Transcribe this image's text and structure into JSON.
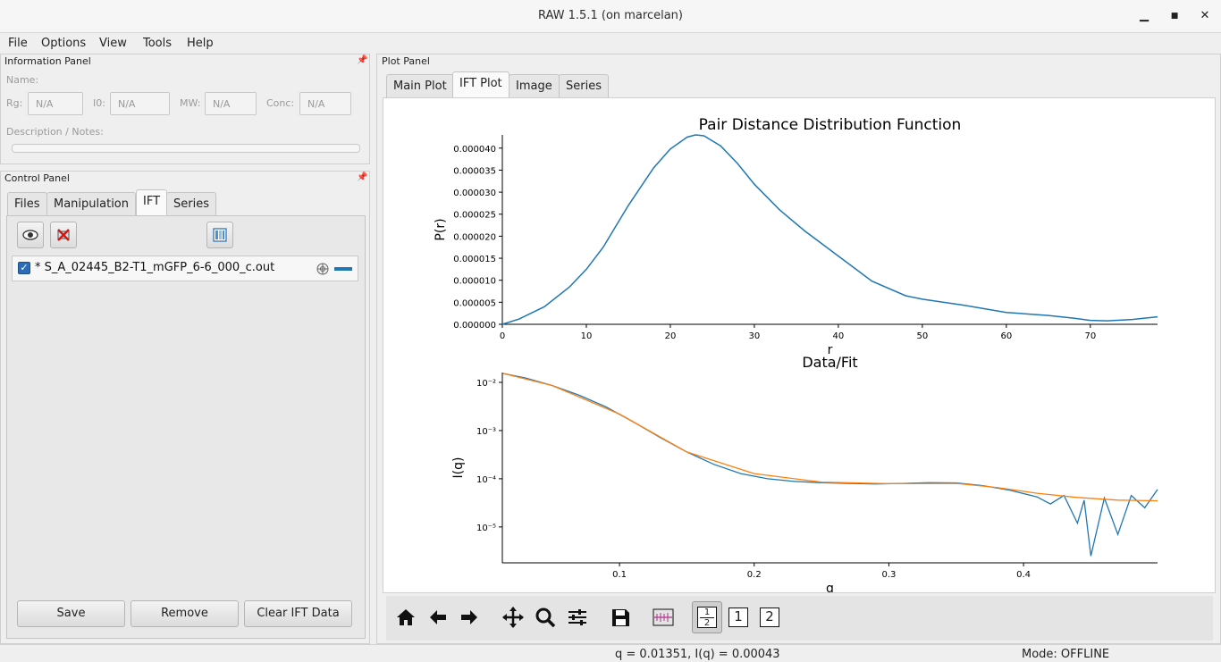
{
  "window": {
    "title": "RAW 1.5.1 (on marcelan)",
    "minimize_glyph": "▁",
    "maximize_glyph": "■",
    "close_glyph": "✕"
  },
  "menu": [
    "File",
    "Options",
    "View",
    "Tools",
    "Help"
  ],
  "info_panel": {
    "title": "Information Panel",
    "name_label": "Name:",
    "fields": [
      {
        "label": "Rg:",
        "value": "N/A"
      },
      {
        "label": "I0:",
        "value": "N/A"
      },
      {
        "label": "MW:",
        "value": "N/A"
      },
      {
        "label": "Conc:",
        "value": "N/A"
      }
    ],
    "notes_label": "Description / Notes:"
  },
  "control_panel": {
    "title": "Control Panel",
    "tabs": [
      "Files",
      "Manipulation",
      "IFT",
      "Series"
    ],
    "active_tab": "IFT",
    "icons": [
      "eye-icon",
      "remove-x-icon",
      "columns-icon"
    ],
    "items": [
      {
        "checked": true,
        "name": "* S_A_02445_B2-T1_mGFP_6-6_000_c.out",
        "line_color": "#1f77b4"
      }
    ],
    "buttons": [
      "Save",
      "Remove",
      "Clear IFT Data"
    ]
  },
  "plot_panel": {
    "title": "Plot Panel",
    "tabs": [
      "Main Plot",
      "IFT Plot",
      "Image",
      "Series"
    ],
    "active_tab": "IFT Plot"
  },
  "chart_data": [
    {
      "type": "line",
      "title": "Pair Distance Distribution Function",
      "xlabel": "r",
      "ylabel": "P(r)",
      "xlim": [
        0,
        78
      ],
      "ylim": [
        0,
        4.3e-05
      ],
      "x_ticks": [
        "0",
        "10",
        "20",
        "30",
        "40",
        "50",
        "60",
        "70"
      ],
      "y_ticks": [
        "0.000000",
        "0.000005",
        "0.000010",
        "0.000015",
        "0.000020",
        "0.000025",
        "0.000030",
        "0.000035",
        "0.000040"
      ],
      "series": [
        {
          "color": "#1f77b4",
          "x": [
            0,
            2,
            5,
            8,
            10,
            12,
            15,
            18,
            20,
            22,
            23,
            24,
            26,
            28,
            30,
            33,
            36,
            40,
            44,
            48,
            50,
            55,
            60,
            65,
            68,
            70,
            72,
            75,
            78
          ],
          "y": [
            0.0,
            1.2e-06,
            4e-06,
            8.5e-06,
            1.25e-05,
            1.75e-05,
            2.7e-05,
            3.55e-05,
            3.98e-05,
            4.25e-05,
            4.3e-05,
            4.28e-05,
            4.05e-05,
            3.65e-05,
            3.18e-05,
            2.6e-05,
            2.12e-05,
            1.55e-05,
            9.8e-06,
            6.5e-06,
            5.7e-06,
            4.3e-06,
            2.7e-06,
            2e-06,
            1.4e-06,
            9e-07,
            8e-07,
            1.1e-06,
            1.7e-06
          ]
        }
      ]
    },
    {
      "type": "line",
      "title": "Data/Fit",
      "xlabel": "q",
      "ylabel": "I(q)",
      "yscale": "log",
      "xlim": [
        0.013,
        0.4995
      ],
      "ylim": [
        1.8e-06,
        0.016
      ],
      "x_ticks": [
        "0.1",
        "0.2",
        "0.3",
        "0.4"
      ],
      "y_ticks": [
        "10⁻²",
        "10⁻³",
        "10⁻⁴",
        "10⁻⁵"
      ],
      "series": [
        {
          "name": "Data",
          "color": "#1f77b4",
          "x": [
            0.0135,
            0.03,
            0.05,
            0.07,
            0.09,
            0.11,
            0.13,
            0.15,
            0.17,
            0.19,
            0.21,
            0.23,
            0.25,
            0.27,
            0.29,
            0.31,
            0.33,
            0.35,
            0.37,
            0.39,
            0.41,
            0.42,
            0.43,
            0.44,
            0.445,
            0.45,
            0.46,
            0.47,
            0.48,
            0.49,
            0.4995
          ],
          "y": [
            0.0153,
            0.0124,
            0.0086,
            0.0054,
            0.0031,
            0.00153,
            0.00072,
            0.00036,
            0.0002,
            0.000128,
            0.0001,
            8.8e-05,
            8.3e-05,
            8e-05,
            7.8e-05,
            8e-05,
            8.3e-05,
            8.2e-05,
            7.2e-05,
            5.8e-05,
            4.2e-05,
            3e-05,
            4.5e-05,
            1.2e-05,
            3.6e-05,
            2.5e-06,
            4e-05,
            7e-06,
            4.5e-05,
            2.5e-05,
            6e-05
          ]
        },
        {
          "name": "Fit",
          "color": "#ff7f0e",
          "x": [
            0.0135,
            0.05,
            0.1,
            0.15,
            0.2,
            0.25,
            0.3,
            0.35,
            0.38,
            0.41,
            0.44,
            0.47,
            0.4995
          ],
          "y": [
            0.0153,
            0.0086,
            0.0022,
            0.00036,
            0.000128,
            8.5e-05,
            7.9e-05,
            8e-05,
            6.6e-05,
            5e-05,
            4.1e-05,
            3.6e-05,
            3.5e-05
          ]
        }
      ]
    }
  ],
  "toolbar": {
    "icons": [
      "home-icon",
      "back-arrow-icon",
      "forward-arrow-icon",
      "pan-icon",
      "zoom-icon",
      "configure-subplots-icon",
      "save-figure-icon",
      "error-bars-icon",
      "both-plots-icon",
      "plot-1-icon",
      "plot-2-icon"
    ],
    "half_top": "1",
    "half_bottom": "2",
    "plot1_label": "1",
    "plot2_label": "2"
  },
  "status": {
    "coords": "q = 0.01351, I(q) = 0.00043",
    "mode": "Mode: OFFLINE"
  }
}
